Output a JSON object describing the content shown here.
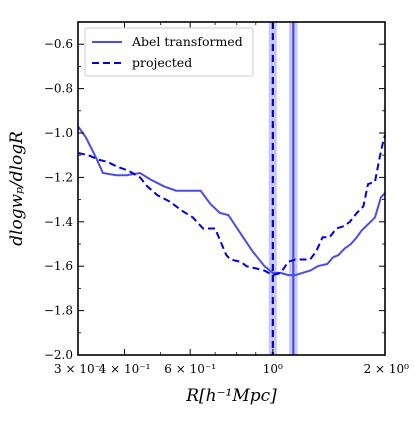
{
  "chart_data": {
    "type": "line",
    "xlabel": "R[h⁻¹Mpc]",
    "ylabel": "dlogwₚ/dlogR",
    "x_scale": "log",
    "xlim": [
      0.3,
      2.0
    ],
    "ylim": [
      -2.0,
      -0.5
    ],
    "grid": false,
    "legend_position": "top-left",
    "x_ticks": [
      {
        "value": 0.3,
        "label": "3 × 10⁻¹"
      },
      {
        "value": 0.4,
        "label": "4 × 10⁻¹"
      },
      {
        "value": 0.6,
        "label": "6 × 10⁻¹"
      },
      {
        "value": 1.0,
        "label": "10⁰"
      },
      {
        "value": 2.0,
        "label": "2 × 10⁰"
      }
    ],
    "y_ticks": [
      -2.0,
      -1.8,
      -1.6,
      -1.4,
      -1.2,
      -1.0,
      -0.8,
      -0.6
    ],
    "y_tick_labels": [
      "−2.0",
      "−1.8",
      "−1.6",
      "−1.4",
      "−1.2",
      "−1.0",
      "−0.8",
      "−0.6"
    ],
    "color": "#0000ee",
    "series": [
      {
        "name": "Abel transformed",
        "style": "solid",
        "color": "#4b4bea",
        "points": [
          [
            0.3,
            -0.97
          ],
          [
            0.315,
            -1.02
          ],
          [
            0.335,
            -1.11
          ],
          [
            0.35,
            -1.18
          ],
          [
            0.38,
            -1.19
          ],
          [
            0.405,
            -1.19
          ],
          [
            0.44,
            -1.18
          ],
          [
            0.47,
            -1.21
          ],
          [
            0.51,
            -1.24
          ],
          [
            0.55,
            -1.26
          ],
          [
            0.6,
            -1.26
          ],
          [
            0.64,
            -1.26
          ],
          [
            0.68,
            -1.32
          ],
          [
            0.72,
            -1.36
          ],
          [
            0.76,
            -1.37
          ],
          [
            0.81,
            -1.44
          ],
          [
            0.88,
            -1.53
          ],
          [
            0.95,
            -1.6
          ],
          [
            1.0,
            -1.63
          ],
          [
            1.05,
            -1.63
          ],
          [
            1.1,
            -1.64
          ],
          [
            1.15,
            -1.64
          ],
          [
            1.2,
            -1.63
          ],
          [
            1.26,
            -1.62
          ],
          [
            1.32,
            -1.6
          ],
          [
            1.4,
            -1.59
          ],
          [
            1.45,
            -1.56
          ],
          [
            1.5,
            -1.55
          ],
          [
            1.56,
            -1.52
          ],
          [
            1.62,
            -1.5
          ],
          [
            1.68,
            -1.47
          ],
          [
            1.73,
            -1.44
          ],
          [
            1.78,
            -1.42
          ],
          [
            1.83,
            -1.4
          ],
          [
            1.88,
            -1.38
          ],
          [
            1.95,
            -1.29
          ],
          [
            2.0,
            -1.27
          ]
        ]
      },
      {
        "name": "projected",
        "style": "dashed",
        "color": "#0000dd",
        "points": [
          [
            0.3,
            -1.09
          ],
          [
            0.32,
            -1.1
          ],
          [
            0.34,
            -1.12
          ],
          [
            0.36,
            -1.13
          ],
          [
            0.38,
            -1.15
          ],
          [
            0.41,
            -1.17
          ],
          [
            0.44,
            -1.2
          ],
          [
            0.46,
            -1.24
          ],
          [
            0.49,
            -1.28
          ],
          [
            0.53,
            -1.31
          ],
          [
            0.57,
            -1.35
          ],
          [
            0.61,
            -1.38
          ],
          [
            0.65,
            -1.43
          ],
          [
            0.7,
            -1.43
          ],
          [
            0.75,
            -1.55
          ],
          [
            0.77,
            -1.57
          ],
          [
            0.82,
            -1.58
          ],
          [
            0.85,
            -1.6
          ],
          [
            0.9,
            -1.61
          ],
          [
            0.95,
            -1.62
          ],
          [
            1.0,
            -1.64
          ],
          [
            1.05,
            -1.63
          ],
          [
            1.1,
            -1.58
          ],
          [
            1.15,
            -1.57
          ],
          [
            1.2,
            -1.57
          ],
          [
            1.26,
            -1.57
          ],
          [
            1.31,
            -1.53
          ],
          [
            1.36,
            -1.47
          ],
          [
            1.42,
            -1.47
          ],
          [
            1.48,
            -1.43
          ],
          [
            1.55,
            -1.42
          ],
          [
            1.61,
            -1.4
          ],
          [
            1.68,
            -1.36
          ],
          [
            1.75,
            -1.33
          ],
          [
            1.8,
            -1.23
          ],
          [
            1.88,
            -1.22
          ],
          [
            1.93,
            -1.12
          ],
          [
            1.97,
            -1.05
          ],
          [
            2.0,
            -1.01
          ]
        ]
      }
    ],
    "vertical_bands": [
      {
        "center": 1.0,
        "low": 0.975,
        "high": 1.025,
        "line_style": "dashed",
        "color": "#0000dd",
        "fill": "#b8b8f5"
      },
      {
        "center": 1.135,
        "low": 1.105,
        "high": 1.165,
        "line_style": "solid",
        "color": "#4b4bea",
        "fill": "#b8b8f5"
      }
    ]
  }
}
